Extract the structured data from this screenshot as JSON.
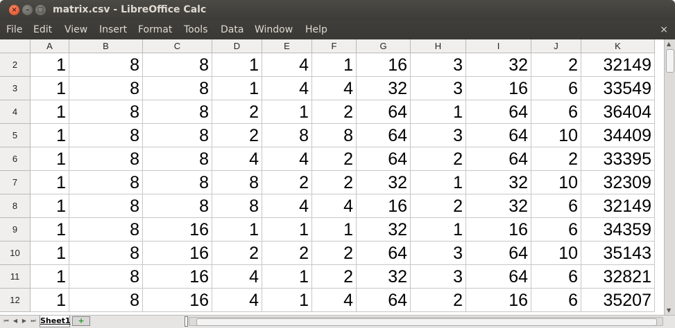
{
  "window": {
    "title": "matrix.csv - LibreOffice Calc"
  },
  "menubar": {
    "items": [
      {
        "label": "File"
      },
      {
        "label": "Edit"
      },
      {
        "label": "View"
      },
      {
        "label": "Insert"
      },
      {
        "label": "Format"
      },
      {
        "label": "Tools"
      },
      {
        "label": "Data"
      },
      {
        "label": "Window"
      },
      {
        "label": "Help"
      }
    ],
    "close_glyph": "×"
  },
  "sheet": {
    "columns": [
      "A",
      "B",
      "C",
      "D",
      "E",
      "F",
      "G",
      "H",
      "I",
      "J",
      "K"
    ],
    "row_numbers": [
      "2",
      "3",
      "4",
      "5",
      "6",
      "7",
      "8",
      "9",
      "10",
      "11",
      "12"
    ],
    "rows": [
      [
        "1",
        "8",
        "8",
        "1",
        "4",
        "1",
        "16",
        "3",
        "32",
        "2",
        "32149"
      ],
      [
        "1",
        "8",
        "8",
        "1",
        "4",
        "4",
        "32",
        "3",
        "16",
        "6",
        "33549"
      ],
      [
        "1",
        "8",
        "8",
        "2",
        "1",
        "2",
        "64",
        "1",
        "64",
        "6",
        "36404"
      ],
      [
        "1",
        "8",
        "8",
        "2",
        "8",
        "8",
        "64",
        "3",
        "64",
        "10",
        "34409"
      ],
      [
        "1",
        "8",
        "8",
        "4",
        "4",
        "2",
        "64",
        "2",
        "64",
        "2",
        "33395"
      ],
      [
        "1",
        "8",
        "8",
        "8",
        "2",
        "2",
        "32",
        "1",
        "32",
        "10",
        "32309"
      ],
      [
        "1",
        "8",
        "8",
        "8",
        "4",
        "4",
        "16",
        "2",
        "32",
        "6",
        "32149"
      ],
      [
        "1",
        "8",
        "16",
        "1",
        "1",
        "1",
        "32",
        "1",
        "16",
        "6",
        "34359"
      ],
      [
        "1",
        "8",
        "16",
        "2",
        "2",
        "2",
        "64",
        "3",
        "64",
        "10",
        "35143"
      ],
      [
        "1",
        "8",
        "16",
        "4",
        "1",
        "2",
        "32",
        "3",
        "64",
        "6",
        "32821"
      ],
      [
        "1",
        "8",
        "16",
        "4",
        "1",
        "4",
        "64",
        "2",
        "16",
        "6",
        "35207"
      ]
    ]
  },
  "tabs": {
    "active": "Sheet1",
    "add_glyph": "+"
  }
}
